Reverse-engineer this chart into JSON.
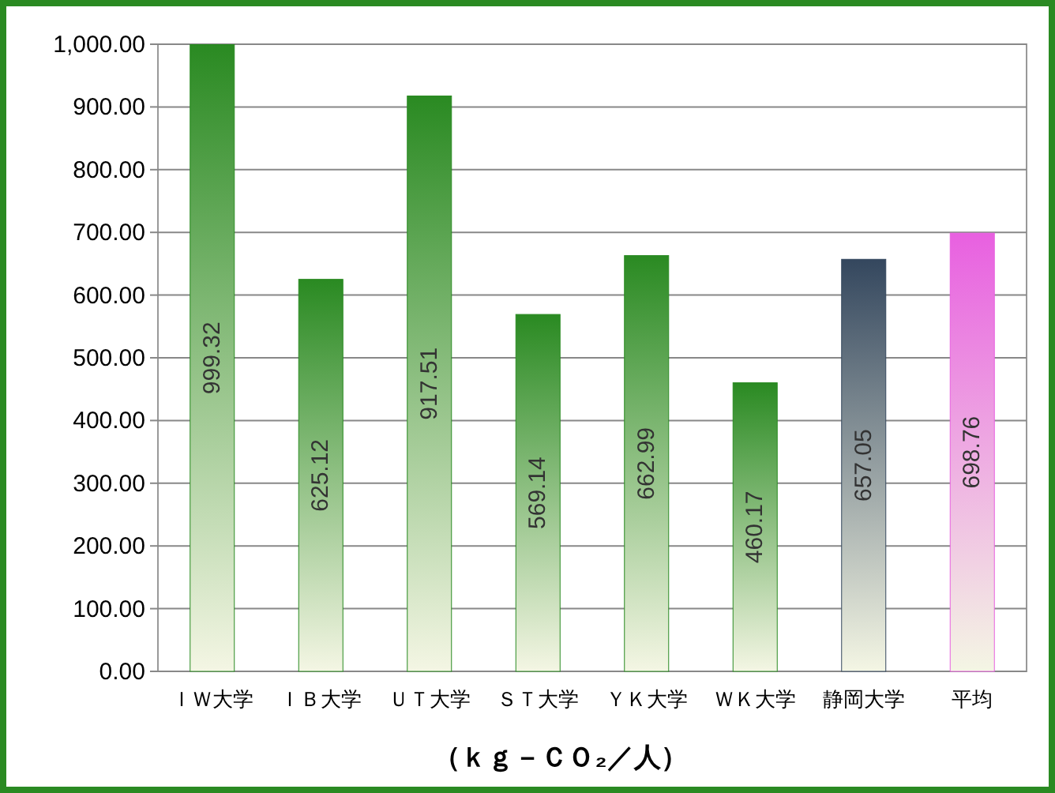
{
  "chart_data": {
    "type": "bar",
    "xlabel": "（ｋｇ－ＣＯ₂／人）",
    "categories": [
      "ＩＷ大学",
      "ＩＢ大学",
      "ＵＴ大学",
      "ＳＴ大学",
      "ＹＫ大学",
      "ＷＫ大学",
      "静岡大学",
      "平均"
    ],
    "values": [
      999.32,
      625.12,
      917.51,
      569.14,
      662.99,
      460.17,
      657.05,
      698.76
    ],
    "colors": [
      "#2a8a22",
      "#2a8a22",
      "#2a8a22",
      "#2a8a22",
      "#2a8a22",
      "#2a8a22",
      "#34475e",
      "#e860e0"
    ],
    "data_labels": true,
    "ylim": [
      0,
      1000
    ],
    "yticks": [
      {
        "value": 0,
        "label": "0.00"
      },
      {
        "value": 100,
        "label": "100.00"
      },
      {
        "value": 200,
        "label": "200.00"
      },
      {
        "value": 300,
        "label": "300.00"
      },
      {
        "value": 400,
        "label": "400.00"
      },
      {
        "value": 500,
        "label": "500.00"
      },
      {
        "value": 600,
        "label": "600.00"
      },
      {
        "value": 700,
        "label": "700.00"
      },
      {
        "value": 800,
        "label": "800.00"
      },
      {
        "value": 900,
        "label": "900.00"
      },
      {
        "value": 1000,
        "label": "1,000.00"
      }
    ],
    "grid": "y"
  }
}
